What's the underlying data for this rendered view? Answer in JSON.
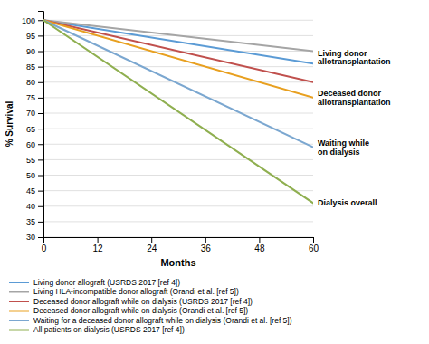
{
  "chart_data": {
    "type": "line",
    "xlabel": "Months",
    "ylabel": "% Survival",
    "x": [
      0,
      60
    ],
    "xlim": [
      0,
      60
    ],
    "ylim": [
      30,
      103
    ],
    "xticks": [
      0,
      12,
      24,
      36,
      48,
      60
    ],
    "yticks": [
      30,
      35,
      40,
      45,
      50,
      55,
      60,
      65,
      70,
      75,
      80,
      85,
      90,
      95,
      100
    ],
    "grid": true,
    "legend": "bottom",
    "series": [
      {
        "name": "Living donor allograft (USRDS 2017 [ref 4])",
        "color": "#5B9BD5",
        "values": [
          100,
          86
        ]
      },
      {
        "name": "Living HLA-incompatible donor allograft (Orandi et al. [ref 5])",
        "color": "#A5A5A5",
        "values": [
          100,
          90
        ]
      },
      {
        "name": "Deceased donor allograft while on dialysis (USRDS 2017 [ref 4])",
        "color": "#C0504D",
        "values": [
          100,
          80
        ]
      },
      {
        "name": "Deceased donor allograft while on dialysis (Orandi et al. [ref 5])",
        "color": "#E8A020",
        "values": [
          100,
          75
        ]
      },
      {
        "name": "Waiting for a deceased donor allograft while on dialysis (Orandi et al. [ref 5])",
        "color": "#7BA7D0",
        "values": [
          100,
          59
        ]
      },
      {
        "name": "All patients on dialysis (USRDS 2017 [ref 4])",
        "color": "#8FAF50",
        "values": [
          100,
          41
        ]
      }
    ],
    "annotations": [
      {
        "text": "Living donor\nallotransplantation",
        "x": 61,
        "y": 88
      },
      {
        "text": "Deceased donor\nallotransplantation",
        "x": 61,
        "y": 75
      },
      {
        "text": "Waiting while\non dialysis",
        "x": 61,
        "y": 59
      },
      {
        "text": "Dialysis overall",
        "x": 61,
        "y": 41
      }
    ]
  }
}
